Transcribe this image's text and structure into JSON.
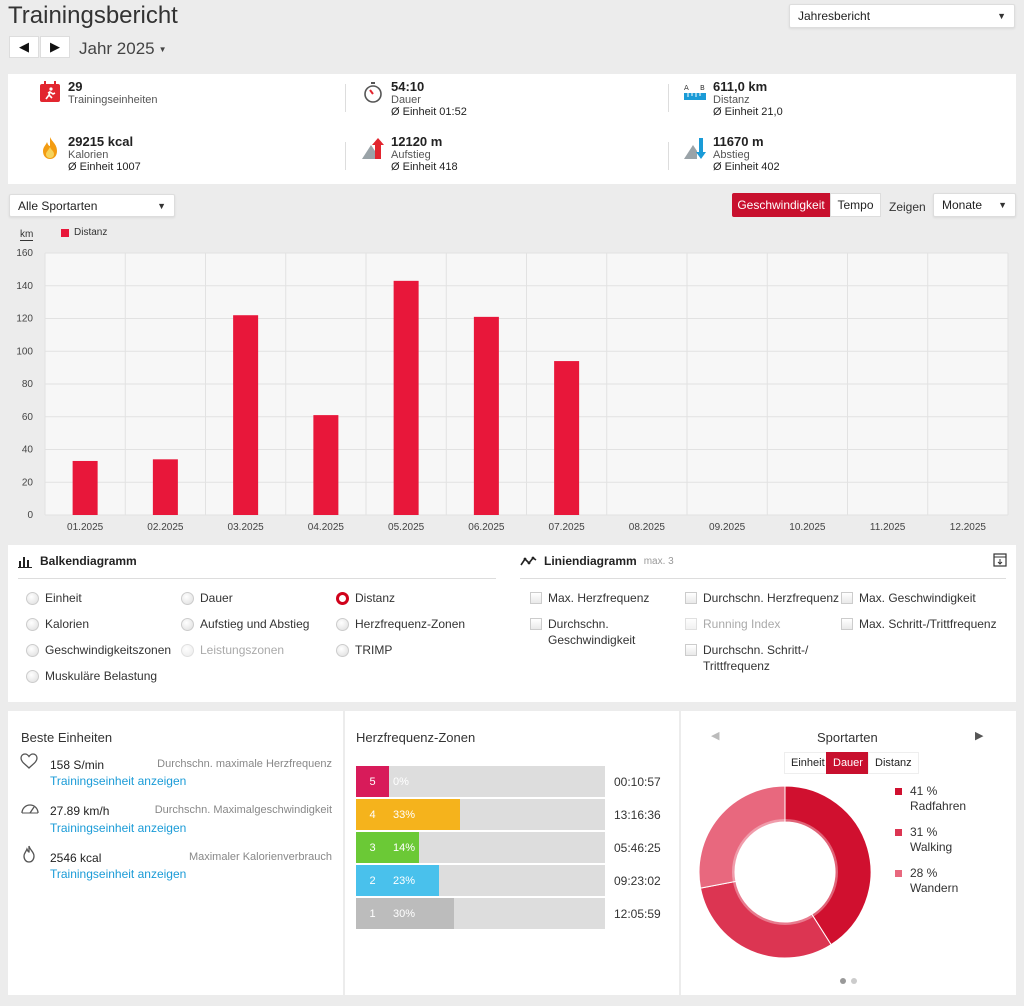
{
  "header": {
    "title": "Trainingsbericht",
    "year_label": "Jahr 2025",
    "report_select": "Jahresbericht"
  },
  "stats": [
    {
      "value": "29",
      "label": "Trainingseinheiten",
      "sub": "",
      "icon": "calendar-runner-icon"
    },
    {
      "value": "54:10",
      "label": "Dauer",
      "sub": "Ø Einheit 01:52",
      "icon": "stopwatch-icon"
    },
    {
      "value": "611,0 km",
      "label": "Distanz",
      "sub": "Ø Einheit 21,0",
      "icon": "ruler-ab-icon"
    },
    {
      "value": "29215 kcal",
      "label": "Kalorien",
      "sub": "Ø Einheit 1007",
      "icon": "flame-icon"
    },
    {
      "value": "12120 m",
      "label": "Aufstieg",
      "sub": "Ø Einheit 418",
      "icon": "ascent-icon"
    },
    {
      "value": "11670 m",
      "label": "Abstieg",
      "sub": "Ø Einheit 402",
      "icon": "descent-icon"
    }
  ],
  "filters": {
    "sport_select": "Alle Sportarten",
    "speed_button": "Geschwindigkeit",
    "pace_button": "Tempo",
    "show_label": "Zeigen",
    "period_select": "Monate"
  },
  "chart_data": {
    "type": "bar",
    "unit_label": "km",
    "categories": [
      "01.2025",
      "02.2025",
      "03.2025",
      "04.2025",
      "05.2025",
      "06.2025",
      "07.2025",
      "08.2025",
      "09.2025",
      "10.2025",
      "11.2025",
      "12.2025"
    ],
    "series": [
      {
        "name": "Distanz",
        "values": [
          33,
          34,
          122,
          61,
          143,
          121,
          94,
          0,
          0,
          0,
          0,
          0
        ],
        "color": "#e8173a"
      }
    ],
    "ylim": [
      0,
      160
    ],
    "yticks": [
      0,
      20,
      40,
      60,
      80,
      100,
      120,
      140,
      160
    ],
    "grid": true,
    "legend": "top-left"
  },
  "bar_options": {
    "title": "Balkendiagramm",
    "items": [
      "Einheit",
      "Dauer",
      "Distanz",
      "Kalorien",
      "Aufstieg und Abstieg",
      "Herzfrequenz-Zonen",
      "Geschwindigkeitszonen",
      "Leistungszonen",
      "TRIMP",
      "Muskuläre Belastung"
    ],
    "selected": "Distanz"
  },
  "line_options": {
    "title": "Liniendiagramm",
    "max_note": "max. 3",
    "items": [
      "Max. Herzfrequenz",
      "Durchschn. Herzfrequenz",
      "Max. Geschwindigkeit",
      "Durchschn. Geschwindigkeit",
      "Running Index",
      "Max. Schritt-/Trittfrequenz",
      "Durchschn. Schritt-/ Trittfrequenz"
    ]
  },
  "best": {
    "title": "Beste Einheiten",
    "link": "Trainingseinheit anzeigen",
    "items": [
      {
        "value": "158 S/min",
        "label": "Durchschn. maximale Herzfrequenz",
        "icon": "heart-icon"
      },
      {
        "value": "27.89 km/h",
        "label": "Durchschn. Maximalgeschwindigkeit",
        "icon": "speedometer-icon"
      },
      {
        "value": "2546 kcal",
        "label": "Maximaler Kalorienverbrauch",
        "icon": "flame-outline-icon"
      }
    ]
  },
  "hr_zones": {
    "title": "Herzfrequenz-Zonen",
    "zones": [
      {
        "zone": "5",
        "percent": "0%",
        "fraction": 0.0,
        "time": "00:10:57",
        "color": "#d81b5a"
      },
      {
        "zone": "4",
        "percent": "33%",
        "fraction": 0.33,
        "time": "13:16:36",
        "color": "#f5b31c"
      },
      {
        "zone": "3",
        "percent": "14%",
        "fraction": 0.14,
        "time": "05:46:25",
        "color": "#6bc936"
      },
      {
        "zone": "2",
        "percent": "23%",
        "fraction": 0.23,
        "time": "09:23:02",
        "color": "#49c1ec"
      },
      {
        "zone": "1",
        "percent": "30%",
        "fraction": 0.3,
        "time": "12:05:59",
        "color": "#bcbcbc"
      }
    ]
  },
  "sports": {
    "title": "Sportarten",
    "tabs": [
      "Einheit",
      "Dauer",
      "Distanz"
    ],
    "active_tab": "Dauer",
    "slices": [
      {
        "pct": "41 %",
        "name": "Radfahren",
        "value": 41,
        "color": "#d0102f"
      },
      {
        "pct": "31 %",
        "name": "Walking",
        "value": 31,
        "color": "#dc3552"
      },
      {
        "pct": "28 %",
        "name": "Wandern",
        "value": 28,
        "color": "#e8687e"
      }
    ]
  }
}
